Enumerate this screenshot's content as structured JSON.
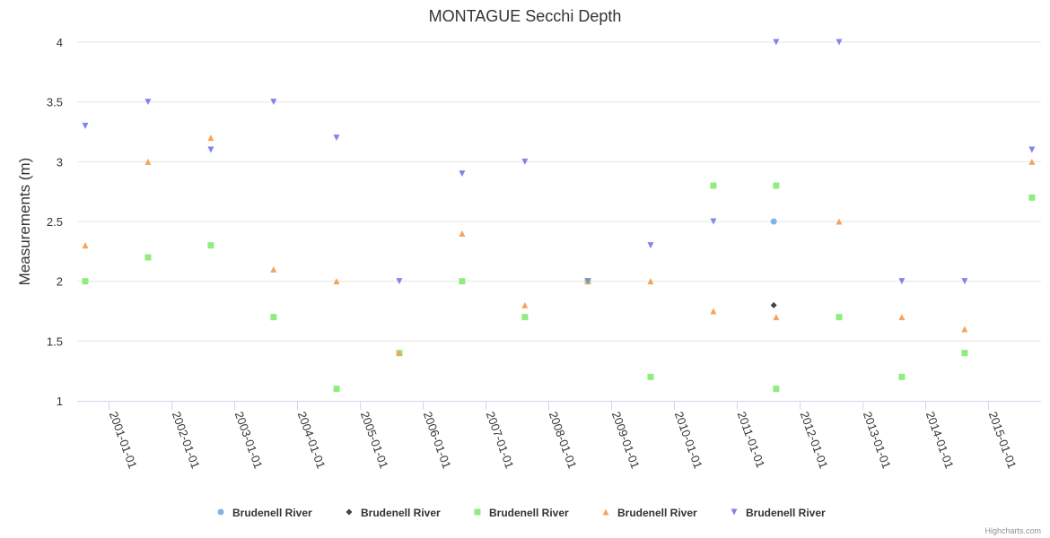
{
  "chart_data": {
    "type": "scatter",
    "title": "MONTAGUE Secchi Depth",
    "ylabel": "Measurements (m)",
    "xlabel": "",
    "x_range": [
      "2000-08-15",
      "2015-09-10"
    ],
    "ylim": [
      1,
      4
    ],
    "yticks": [
      "1",
      "1.5",
      "2",
      "2.5",
      "3",
      "3.5",
      "4"
    ],
    "xticks": [
      "2001-01-01",
      "2002-01-01",
      "2003-01-01",
      "2004-01-01",
      "2005-01-01",
      "2006-01-01",
      "2007-01-01",
      "2008-01-01",
      "2009-01-01",
      "2010-01-01",
      "2011-01-01",
      "2012-01-01",
      "2013-01-01",
      "2014-01-01",
      "2015-01-01"
    ],
    "grid": true,
    "legend_position": "bottom-center",
    "series": [
      {
        "name": "Brudenell River",
        "marker": "circle",
        "color": "#7cb5ec",
        "points": [
          {
            "x": "2011-08-01",
            "y": 2.5
          }
        ]
      },
      {
        "name": "Brudenell River",
        "marker": "diamond",
        "color": "#434348",
        "points": [
          {
            "x": "2011-08-01",
            "y": 1.8
          }
        ]
      },
      {
        "name": "Brudenell River",
        "marker": "square",
        "color": "#90ed7d",
        "points": [
          {
            "x": "2000-08-15",
            "y": 2.0
          },
          {
            "x": "2001-08-15",
            "y": 2.2
          },
          {
            "x": "2002-08-15",
            "y": 2.3
          },
          {
            "x": "2003-08-15",
            "y": 1.7
          },
          {
            "x": "2004-08-15",
            "y": 1.1
          },
          {
            "x": "2005-08-15",
            "y": 1.4
          },
          {
            "x": "2006-08-15",
            "y": 2.0
          },
          {
            "x": "2007-08-15",
            "y": 1.7
          },
          {
            "x": "2008-08-15",
            "y": 2.0
          },
          {
            "x": "2009-08-15",
            "y": 1.2
          },
          {
            "x": "2010-08-15",
            "y": 2.8
          },
          {
            "x": "2011-08-15",
            "y": 2.8
          },
          {
            "x": "2011-08-15",
            "y": 1.1
          },
          {
            "x": "2012-08-15",
            "y": 1.7
          },
          {
            "x": "2013-08-15",
            "y": 1.2
          },
          {
            "x": "2014-08-15",
            "y": 1.4
          },
          {
            "x": "2015-09-10",
            "y": 2.7
          }
        ]
      },
      {
        "name": "Brudenell River",
        "marker": "triangle",
        "color": "#f7a35c",
        "points": [
          {
            "x": "2000-08-15",
            "y": 2.3
          },
          {
            "x": "2001-08-15",
            "y": 3.0
          },
          {
            "x": "2002-08-15",
            "y": 3.2
          },
          {
            "x": "2003-08-15",
            "y": 2.1
          },
          {
            "x": "2004-08-15",
            "y": 2.0
          },
          {
            "x": "2005-08-15",
            "y": 1.4
          },
          {
            "x": "2006-08-15",
            "y": 2.4
          },
          {
            "x": "2007-08-15",
            "y": 1.8
          },
          {
            "x": "2008-08-15",
            "y": 2.0
          },
          {
            "x": "2009-08-15",
            "y": 2.0
          },
          {
            "x": "2010-08-15",
            "y": 1.75
          },
          {
            "x": "2011-08-15",
            "y": 1.7
          },
          {
            "x": "2012-08-15",
            "y": 2.5
          },
          {
            "x": "2013-08-15",
            "y": 1.7
          },
          {
            "x": "2014-08-15",
            "y": 1.6
          },
          {
            "x": "2015-09-10",
            "y": 3.0
          }
        ]
      },
      {
        "name": "Brudenell River",
        "marker": "triangle-down",
        "color": "#8085e9",
        "points": [
          {
            "x": "2000-08-15",
            "y": 3.3
          },
          {
            "x": "2001-08-15",
            "y": 3.5
          },
          {
            "x": "2002-08-15",
            "y": 3.1
          },
          {
            "x": "2003-08-15",
            "y": 3.5
          },
          {
            "x": "2004-08-15",
            "y": 3.2
          },
          {
            "x": "2005-08-15",
            "y": 2.0
          },
          {
            "x": "2006-08-15",
            "y": 2.9
          },
          {
            "x": "2007-08-15",
            "y": 3.0
          },
          {
            "x": "2008-08-15",
            "y": 2.0
          },
          {
            "x": "2009-08-15",
            "y": 2.3
          },
          {
            "x": "2010-08-15",
            "y": 2.5
          },
          {
            "x": "2011-08-15",
            "y": 4.0
          },
          {
            "x": "2012-08-15",
            "y": 4.0
          },
          {
            "x": "2013-08-15",
            "y": 2.0
          },
          {
            "x": "2014-08-15",
            "y": 2.0
          },
          {
            "x": "2015-09-10",
            "y": 3.1
          }
        ]
      }
    ]
  },
  "credits": "Highcharts.com"
}
